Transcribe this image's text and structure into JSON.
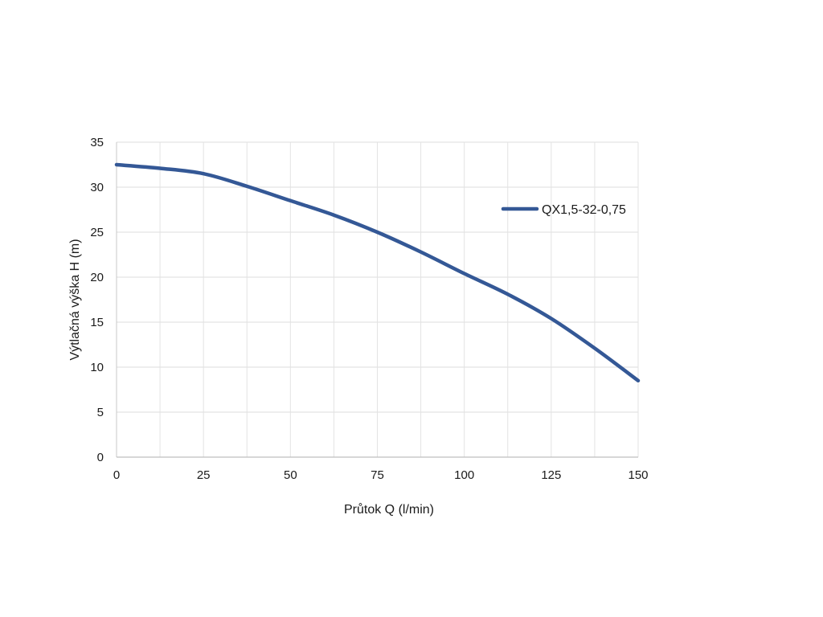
{
  "chart_data": {
    "type": "line",
    "title": "",
    "xlabel": "Průtok Q (l/min)",
    "ylabel": "Výtlačná výška H (m)",
    "xlim": [
      0,
      150
    ],
    "ylim": [
      0,
      35
    ],
    "x_major_ticks": [
      0,
      25,
      50,
      75,
      100,
      125,
      150
    ],
    "x_tick_labels": [
      "0",
      "25",
      "50",
      "75",
      "100",
      "125",
      "150"
    ],
    "x_minor_gridlines": [
      12.5,
      37.5,
      62.5,
      87.5,
      112.5,
      137.5
    ],
    "y_ticks": [
      0,
      5,
      10,
      15,
      20,
      25,
      30,
      35
    ],
    "y_tick_labels": [
      "0",
      "5",
      "10",
      "15",
      "20",
      "25",
      "30",
      "35"
    ],
    "grid": true,
    "legend_position": "right",
    "series": [
      {
        "name": "QX1,5-32-0,75",
        "color": "#345896",
        "x": [
          0,
          12.5,
          25,
          37.5,
          50,
          62.5,
          75,
          87.5,
          100,
          112.5,
          125,
          137.5,
          150
        ],
        "y": [
          32.5,
          32.1,
          31.5,
          30.1,
          28.5,
          26.9,
          25.0,
          22.8,
          20.4,
          18.1,
          15.4,
          12.1,
          8.5
        ]
      }
    ]
  }
}
